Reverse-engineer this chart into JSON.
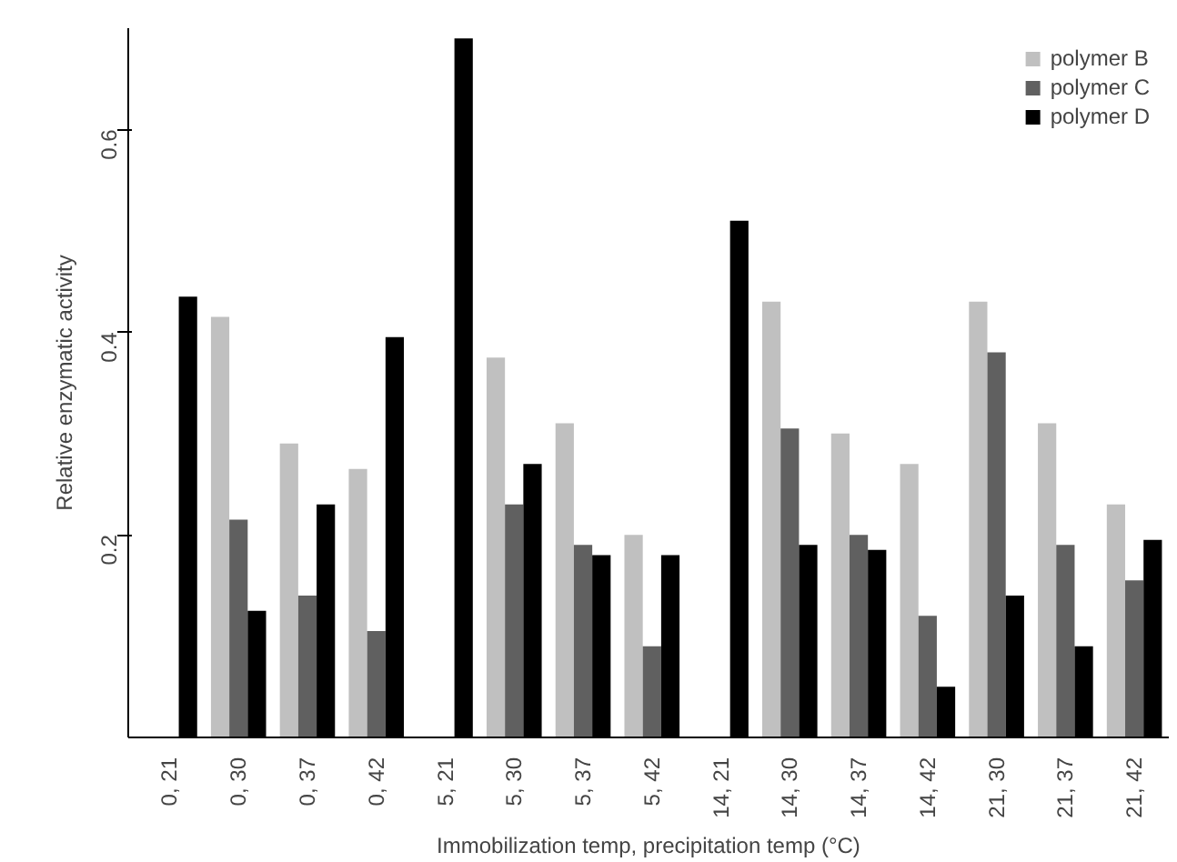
{
  "chart_data": {
    "type": "bar",
    "xlabel": "Immobilization temp, precipitation temp (°C)",
    "ylabel": "Relative enzymatic activity",
    "categories": [
      "0, 21",
      "0, 30",
      "0, 37",
      "0, 42",
      "5, 21",
      "5, 30",
      "5, 37",
      "5, 42",
      "14, 21",
      "14, 30",
      "14, 37",
      "14, 42",
      "21, 30",
      "21, 37",
      "21, 42"
    ],
    "series": [
      {
        "name": "polymer B",
        "color": "#c0c0c0",
        "values": [
          null,
          0.415,
          0.29,
          0.265,
          null,
          0.375,
          0.31,
          0.2,
          null,
          0.43,
          0.3,
          0.27,
          0.43,
          0.31,
          0.23
        ]
      },
      {
        "name": "polymer C",
        "color": "#606060",
        "values": [
          null,
          0.215,
          0.14,
          0.105,
          null,
          0.23,
          0.19,
          0.09,
          null,
          0.305,
          0.2,
          0.12,
          0.38,
          0.19,
          0.155
        ]
      },
      {
        "name": "polymer D",
        "color": "#000000",
        "values": [
          0.435,
          0.125,
          0.23,
          0.395,
          0.69,
          0.27,
          0.18,
          0.18,
          0.51,
          0.19,
          0.185,
          0.05,
          0.14,
          0.09,
          0.195
        ]
      }
    ],
    "ylim": [
      0,
      0.7
    ],
    "yticks": [
      0.2,
      0.4,
      0.6
    ],
    "grid": false,
    "legend": "top right"
  }
}
